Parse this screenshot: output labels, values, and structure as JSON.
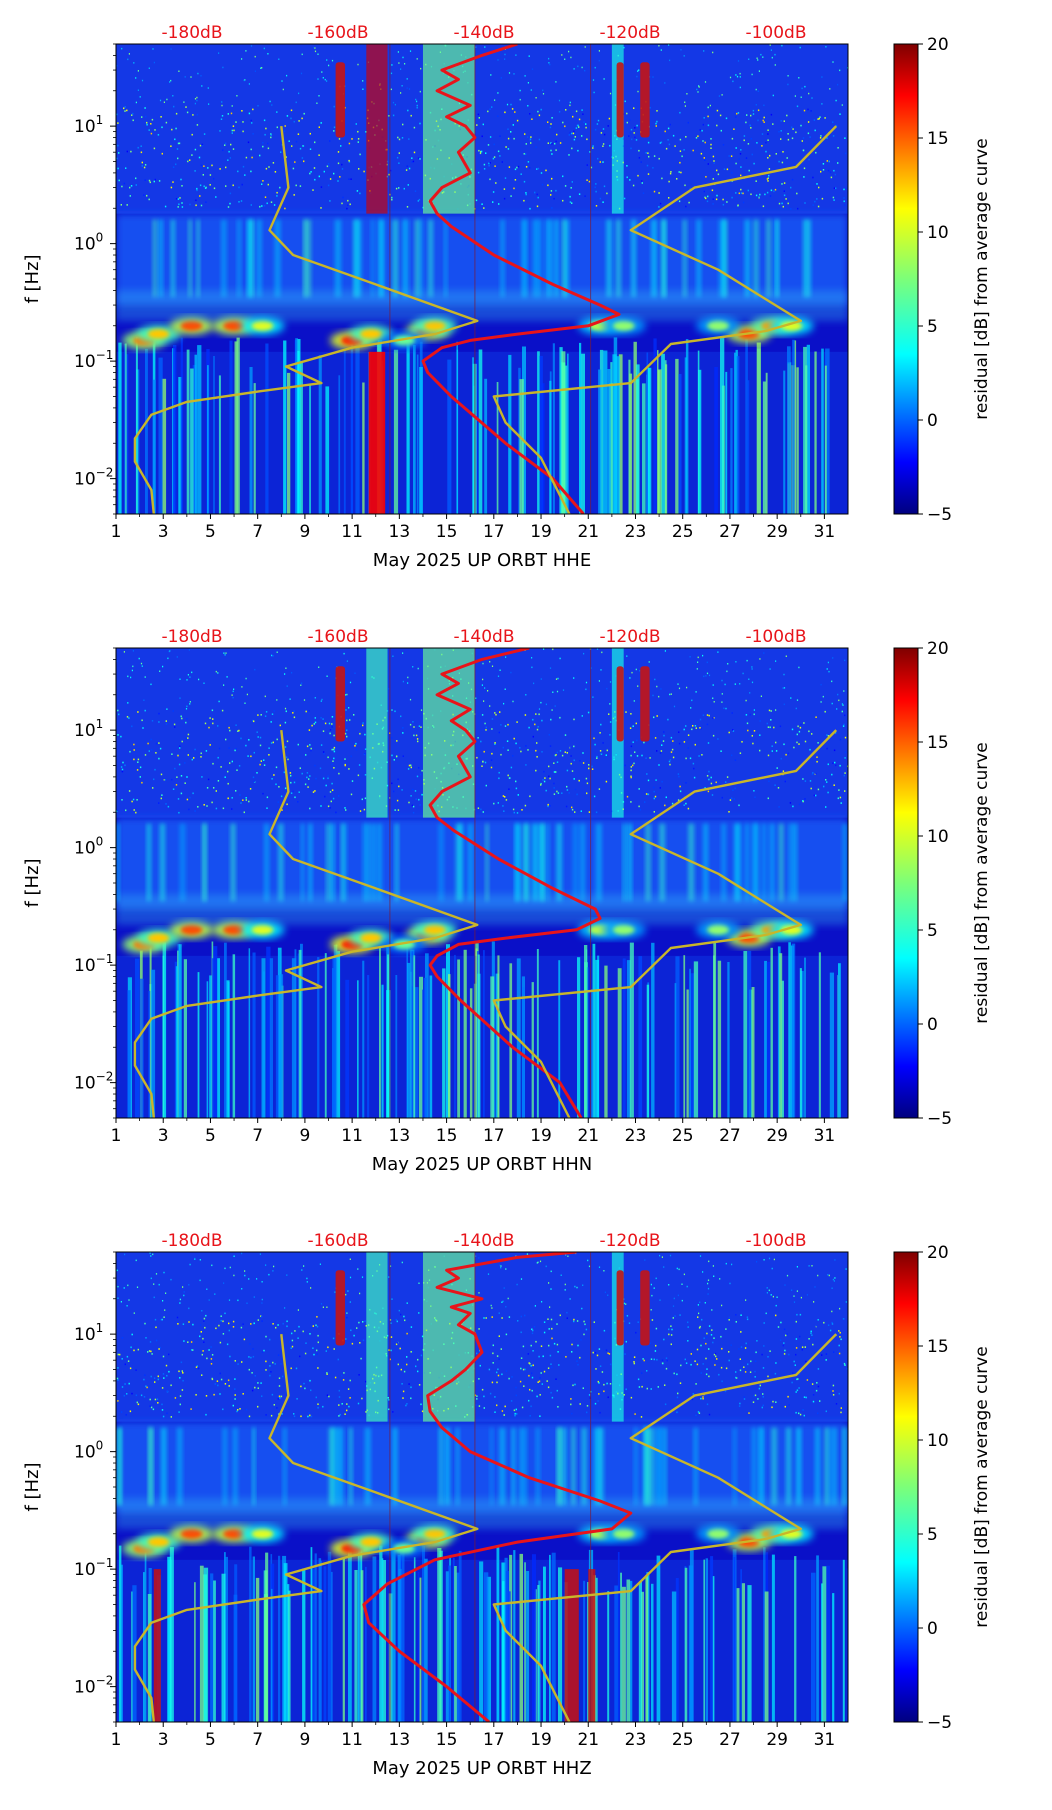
{
  "chart_data": [
    {
      "type": "heatmap",
      "title": "",
      "xlabel": "May 2025 UP ORBT  HHE",
      "ylabel": "f [Hz]",
      "xlim": [
        1,
        32
      ],
      "ylim": [
        0.005,
        50
      ],
      "yscale": "log",
      "x_ticks": [
        "1",
        "3",
        "5",
        "7",
        "9",
        "11",
        "13",
        "15",
        "17",
        "19",
        "21",
        "23",
        "25",
        "27",
        "29",
        "31"
      ],
      "y_ticks": [
        {
          "value": 0.01,
          "base": "10",
          "exp": "−2"
        },
        {
          "value": 0.1,
          "base": "10",
          "exp": "−1"
        },
        {
          "value": 1,
          "base": "10",
          "exp": "0"
        },
        {
          "value": 10,
          "base": "10",
          "exp": "1"
        }
      ],
      "top_axis_labels": [
        "-180dB",
        "-160dB",
        "-140dB",
        "-120dB",
        "-100dB"
      ],
      "colorbar": {
        "label": "residual [dB] from average curve",
        "min": -5,
        "max": 20,
        "ticks": [
          "−5",
          "0",
          "5",
          "10",
          "15",
          "20"
        ]
      },
      "series": [
        {
          "name": "PSD curve (red)",
          "color": "#e8141a",
          "points": [
            [
              18.0,
              50
            ],
            [
              16.5,
              40
            ],
            [
              14.8,
              30
            ],
            [
              15.5,
              25
            ],
            [
              14.6,
              20
            ],
            [
              16.0,
              15
            ],
            [
              15.0,
              12
            ],
            [
              15.8,
              10
            ],
            [
              16.2,
              8
            ],
            [
              15.5,
              6
            ],
            [
              16.0,
              4
            ],
            [
              14.8,
              3
            ],
            [
              14.3,
              2.3
            ],
            [
              14.6,
              1.8
            ],
            [
              15.2,
              1.4
            ],
            [
              17.0,
              0.8
            ],
            [
              19.5,
              0.45
            ],
            [
              21.5,
              0.3
            ],
            [
              22.3,
              0.25
            ],
            [
              21.0,
              0.2
            ],
            [
              18.0,
              0.17
            ],
            [
              16.0,
              0.15
            ],
            [
              14.8,
              0.13
            ],
            [
              14.0,
              0.1
            ],
            [
              14.2,
              0.08
            ],
            [
              15.2,
              0.05
            ],
            [
              17.5,
              0.02
            ],
            [
              19.5,
              0.01
            ],
            [
              20.8,
              0.005
            ]
          ]
        },
        {
          "name": "min model (yellow)",
          "color": "#c9b62a",
          "points": [
            [
              8.0,
              10
            ],
            [
              8.3,
              3
            ],
            [
              7.5,
              1.3
            ],
            [
              8.5,
              0.8
            ],
            [
              12.0,
              0.45
            ],
            [
              16.3,
              0.22
            ],
            [
              14.5,
              0.17
            ],
            [
              11.0,
              0.13
            ],
            [
              8.2,
              0.09
            ],
            [
              9.7,
              0.065
            ],
            [
              7.0,
              0.055
            ],
            [
              4.0,
              0.045
            ],
            [
              2.5,
              0.035
            ],
            [
              1.8,
              0.022
            ],
            [
              1.8,
              0.014
            ],
            [
              2.5,
              0.008
            ],
            [
              2.6,
              0.005
            ]
          ]
        },
        {
          "name": "max model (yellow)",
          "color": "#c9b62a",
          "points": [
            [
              31.5,
              10
            ],
            [
              29.8,
              4.5
            ],
            [
              25.5,
              3
            ],
            [
              22.8,
              1.3
            ],
            [
              26.5,
              0.6
            ],
            [
              30.0,
              0.22
            ],
            [
              28.5,
              0.18
            ],
            [
              24.5,
              0.14
            ],
            [
              22.8,
              0.065
            ],
            [
              17.0,
              0.05
            ],
            [
              17.5,
              0.03
            ],
            [
              19.0,
              0.015
            ],
            [
              20.2,
              0.005
            ]
          ]
        }
      ]
    },
    {
      "type": "heatmap",
      "title": "",
      "xlabel": "May 2025 UP ORBT  HHN",
      "ylabel": "f [Hz]",
      "xlim": [
        1,
        32
      ],
      "ylim": [
        0.005,
        50
      ],
      "yscale": "log",
      "x_ticks": [
        "1",
        "3",
        "5",
        "7",
        "9",
        "11",
        "13",
        "15",
        "17",
        "19",
        "21",
        "23",
        "25",
        "27",
        "29",
        "31"
      ],
      "y_ticks": [
        {
          "value": 0.01,
          "base": "10",
          "exp": "−2"
        },
        {
          "value": 0.1,
          "base": "10",
          "exp": "−1"
        },
        {
          "value": 1,
          "base": "10",
          "exp": "0"
        },
        {
          "value": 10,
          "base": "10",
          "exp": "1"
        }
      ],
      "top_axis_labels": [
        "-180dB",
        "-160dB",
        "-140dB",
        "-120dB",
        "-100dB"
      ],
      "colorbar": {
        "label": "residual [dB] from average curve",
        "min": -5,
        "max": 20,
        "ticks": [
          "−5",
          "0",
          "5",
          "10",
          "15",
          "20"
        ]
      },
      "series": [
        {
          "name": "PSD curve (red)",
          "color": "#e8141a",
          "points": [
            [
              18.5,
              50
            ],
            [
              16.5,
              40
            ],
            [
              14.8,
              30
            ],
            [
              15.5,
              25
            ],
            [
              14.6,
              20
            ],
            [
              16.0,
              15
            ],
            [
              15.2,
              12
            ],
            [
              15.8,
              10
            ],
            [
              16.2,
              8
            ],
            [
              15.5,
              6
            ],
            [
              16.0,
              4
            ],
            [
              14.8,
              3
            ],
            [
              14.3,
              2.3
            ],
            [
              14.6,
              1.8
            ],
            [
              15.3,
              1.4
            ],
            [
              17.2,
              0.8
            ],
            [
              19.5,
              0.45
            ],
            [
              21.3,
              0.3
            ],
            [
              21.5,
              0.25
            ],
            [
              20.5,
              0.2
            ],
            [
              17.5,
              0.17
            ],
            [
              15.5,
              0.15
            ],
            [
              14.6,
              0.12
            ],
            [
              14.3,
              0.1
            ],
            [
              14.6,
              0.08
            ],
            [
              15.6,
              0.05
            ],
            [
              17.8,
              0.02
            ],
            [
              19.8,
              0.01
            ],
            [
              20.7,
              0.005
            ]
          ]
        },
        {
          "name": "min model (yellow)",
          "color": "#c9b62a",
          "points": [
            [
              8.0,
              10
            ],
            [
              8.3,
              3
            ],
            [
              7.5,
              1.3
            ],
            [
              8.5,
              0.8
            ],
            [
              12.0,
              0.45
            ],
            [
              16.3,
              0.22
            ],
            [
              14.5,
              0.17
            ],
            [
              11.0,
              0.13
            ],
            [
              8.2,
              0.09
            ],
            [
              9.7,
              0.065
            ],
            [
              7.0,
              0.055
            ],
            [
              4.0,
              0.045
            ],
            [
              2.5,
              0.035
            ],
            [
              1.8,
              0.022
            ],
            [
              1.8,
              0.014
            ],
            [
              2.5,
              0.008
            ],
            [
              2.6,
              0.005
            ]
          ]
        },
        {
          "name": "max model (yellow)",
          "color": "#c9b62a",
          "points": [
            [
              31.5,
              10
            ],
            [
              29.8,
              4.5
            ],
            [
              25.5,
              3
            ],
            [
              22.8,
              1.3
            ],
            [
              26.5,
              0.6
            ],
            [
              30.0,
              0.22
            ],
            [
              28.5,
              0.18
            ],
            [
              24.5,
              0.14
            ],
            [
              22.8,
              0.065
            ],
            [
              17.0,
              0.05
            ],
            [
              17.5,
              0.03
            ],
            [
              19.0,
              0.015
            ],
            [
              20.2,
              0.005
            ]
          ]
        }
      ]
    },
    {
      "type": "heatmap",
      "title": "",
      "xlabel": "May 2025 UP ORBT  HHZ",
      "ylabel": "f [Hz]",
      "xlim": [
        1,
        32
      ],
      "ylim": [
        0.005,
        50
      ],
      "yscale": "log",
      "x_ticks": [
        "1",
        "3",
        "5",
        "7",
        "9",
        "11",
        "13",
        "15",
        "17",
        "19",
        "21",
        "23",
        "25",
        "27",
        "29",
        "31"
      ],
      "y_ticks": [
        {
          "value": 0.01,
          "base": "10",
          "exp": "−2"
        },
        {
          "value": 0.1,
          "base": "10",
          "exp": "−1"
        },
        {
          "value": 1,
          "base": "10",
          "exp": "0"
        },
        {
          "value": 10,
          "base": "10",
          "exp": "1"
        }
      ],
      "top_axis_labels": [
        "-180dB",
        "-160dB",
        "-140dB",
        "-120dB",
        "-100dB"
      ],
      "colorbar": {
        "label": "residual [dB] from average curve",
        "min": -5,
        "max": 20,
        "ticks": [
          "−5",
          "0",
          "5",
          "10",
          "15",
          "20"
        ]
      },
      "series": [
        {
          "name": "PSD curve (red)",
          "color": "#e8141a",
          "points": [
            [
              20.5,
              50
            ],
            [
              18.0,
              45
            ],
            [
              15.0,
              35
            ],
            [
              15.5,
              30
            ],
            [
              14.6,
              25
            ],
            [
              16.5,
              20
            ],
            [
              15.2,
              17
            ],
            [
              16.0,
              15
            ],
            [
              15.5,
              12
            ],
            [
              16.2,
              10
            ],
            [
              16.5,
              7
            ],
            [
              15.8,
              5
            ],
            [
              15.2,
              4
            ],
            [
              14.2,
              3
            ],
            [
              14.3,
              2.2
            ],
            [
              14.8,
              1.6
            ],
            [
              16.0,
              1.0
            ],
            [
              18.5,
              0.6
            ],
            [
              21.5,
              0.38
            ],
            [
              22.8,
              0.3
            ],
            [
              22.0,
              0.22
            ],
            [
              18.0,
              0.17
            ],
            [
              14.5,
              0.12
            ],
            [
              12.5,
              0.075
            ],
            [
              11.5,
              0.05
            ],
            [
              11.7,
              0.035
            ],
            [
              13.0,
              0.02
            ],
            [
              15.0,
              0.01
            ],
            [
              16.8,
              0.005
            ]
          ]
        },
        {
          "name": "min model (yellow)",
          "color": "#c9b62a",
          "points": [
            [
              8.0,
              10
            ],
            [
              8.3,
              3
            ],
            [
              7.5,
              1.3
            ],
            [
              8.5,
              0.8
            ],
            [
              12.0,
              0.45
            ],
            [
              16.3,
              0.22
            ],
            [
              14.5,
              0.17
            ],
            [
              11.0,
              0.13
            ],
            [
              8.2,
              0.09
            ],
            [
              9.7,
              0.065
            ],
            [
              7.0,
              0.055
            ],
            [
              4.0,
              0.045
            ],
            [
              2.5,
              0.035
            ],
            [
              1.8,
              0.022
            ],
            [
              1.8,
              0.014
            ],
            [
              2.5,
              0.008
            ],
            [
              2.6,
              0.005
            ]
          ]
        },
        {
          "name": "max model (yellow)",
          "color": "#c9b62a",
          "points": [
            [
              31.5,
              10
            ],
            [
              29.8,
              4.5
            ],
            [
              25.5,
              3
            ],
            [
              22.8,
              1.3
            ],
            [
              26.5,
              0.6
            ],
            [
              30.0,
              0.22
            ],
            [
              28.5,
              0.18
            ],
            [
              24.5,
              0.14
            ],
            [
              22.8,
              0.065
            ],
            [
              17.0,
              0.05
            ],
            [
              17.5,
              0.03
            ],
            [
              19.0,
              0.015
            ],
            [
              20.2,
              0.005
            ]
          ]
        }
      ]
    }
  ]
}
